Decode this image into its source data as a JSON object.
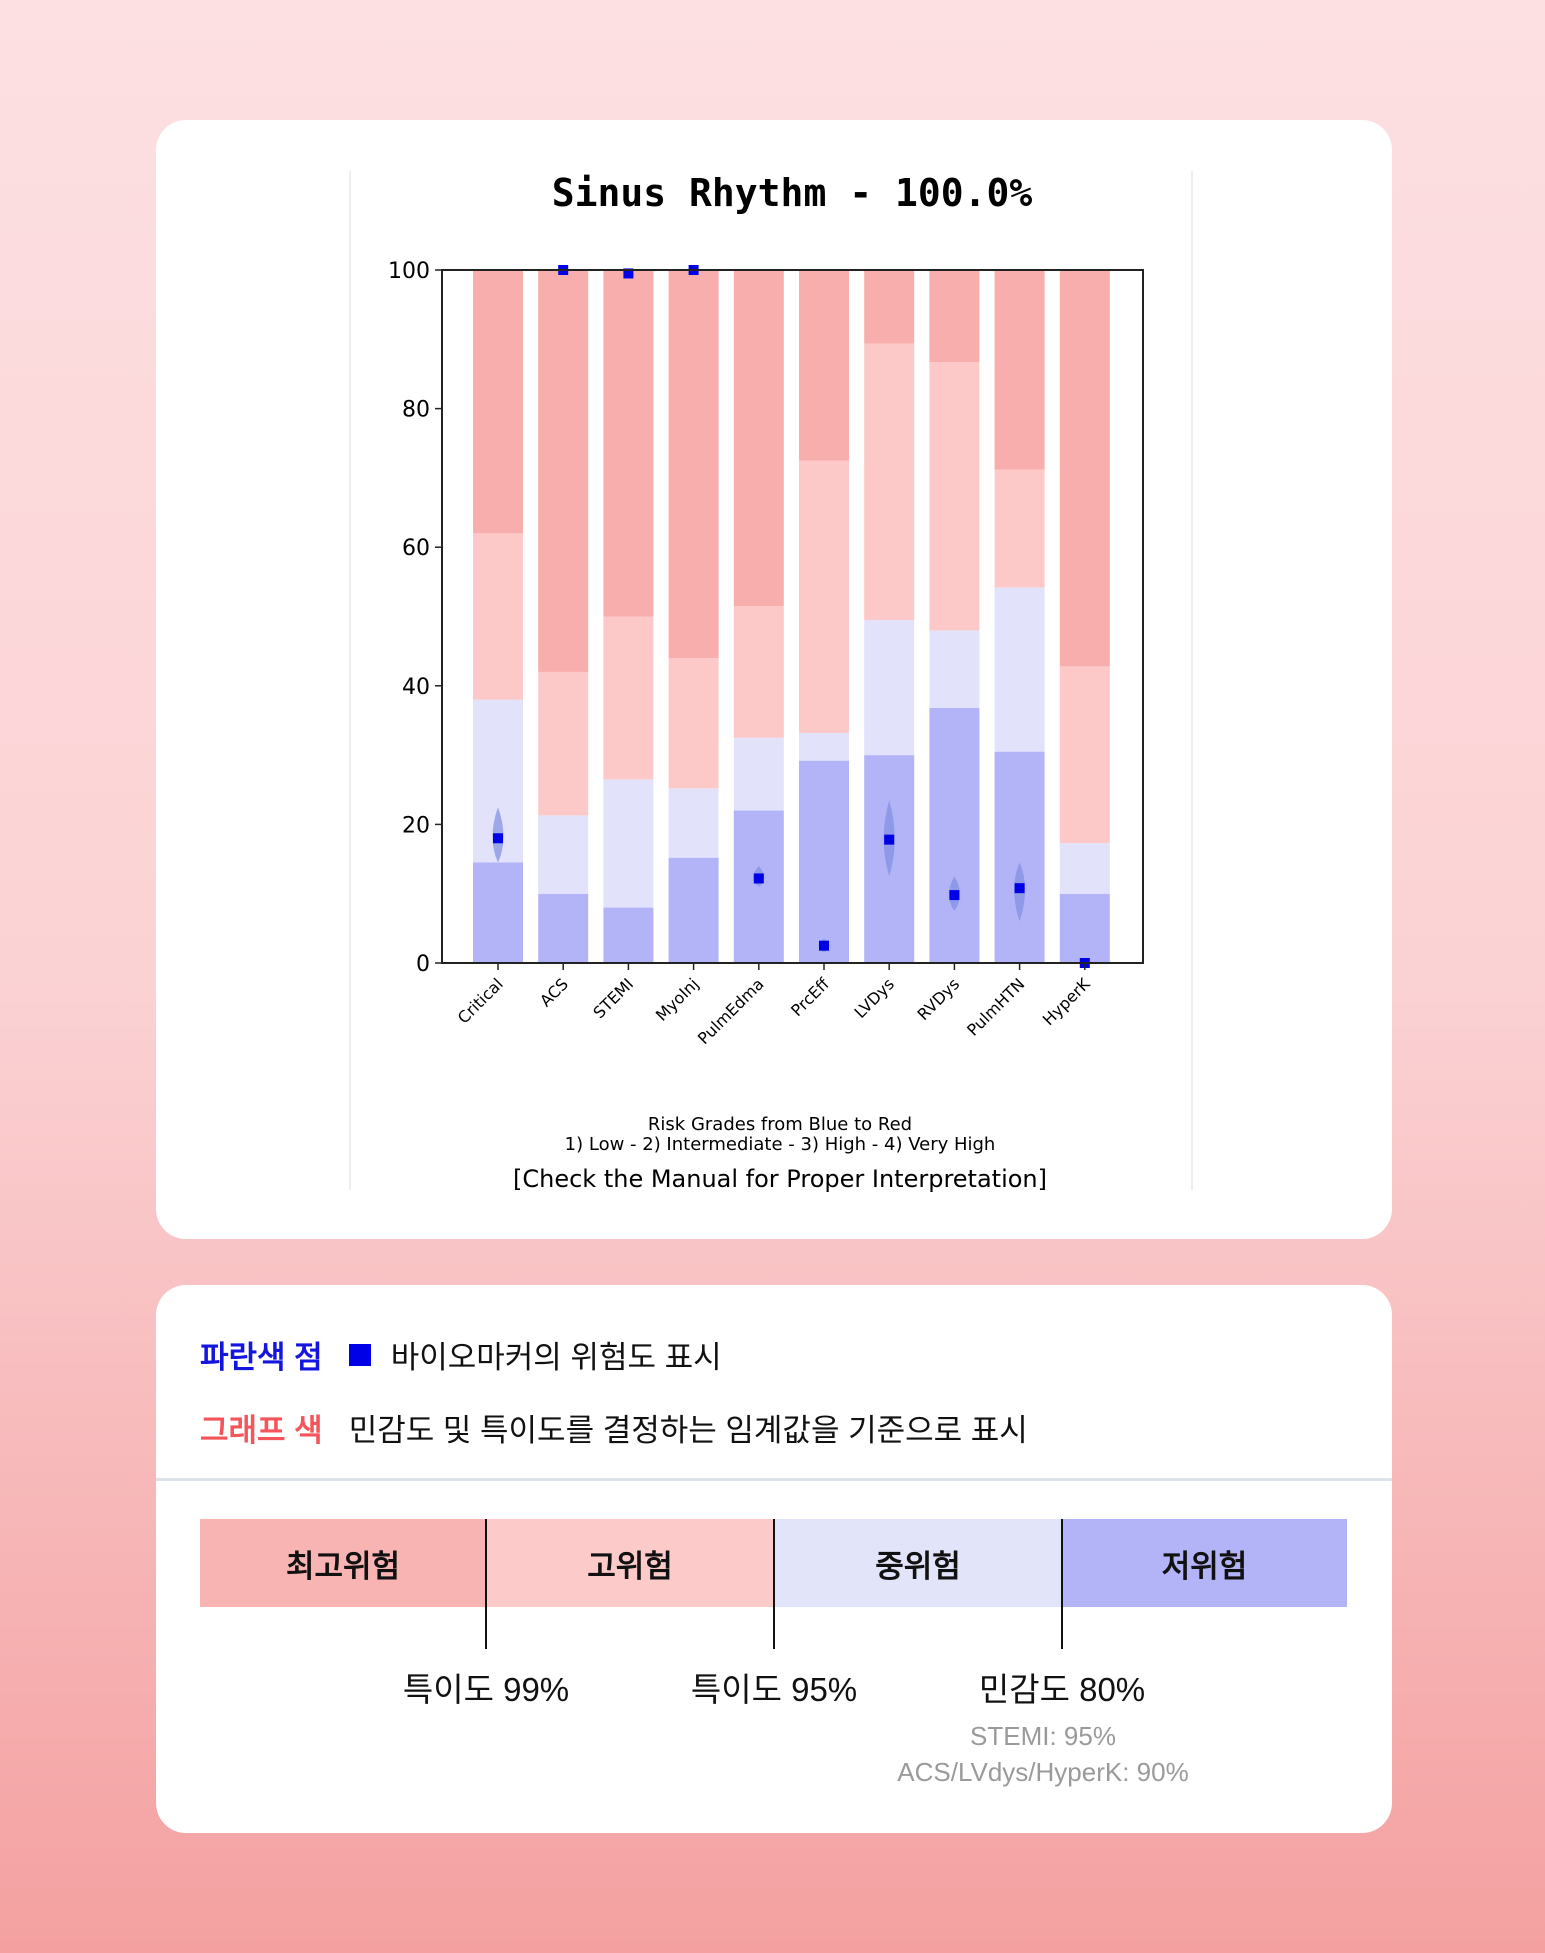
{
  "chart_data": {
    "type": "bar",
    "stacked": true,
    "title": "Sinus Rhythm - 100.0%",
    "categories": [
      "Critical",
      "ACS",
      "STEMI",
      "MyoInj",
      "PulmEdma",
      "PrcEff",
      "LVDys",
      "RVDys",
      "PulmHTN",
      "HyperK"
    ],
    "ylim": [
      0,
      100
    ],
    "yticks": [
      0,
      20,
      40,
      60,
      80,
      100
    ],
    "grid": false,
    "series": [
      {
        "name": "1) Low",
        "color": "#b3b3f8",
        "upper": [
          14.5,
          10,
          8,
          15.2,
          22,
          29.2,
          30,
          36.8,
          30.5,
          10
        ]
      },
      {
        "name": "2) Intermediate",
        "color": "#e2e3fa",
        "upper": [
          38,
          21.3,
          26.5,
          25.2,
          32.5,
          33.2,
          49.5,
          48,
          54.2,
          17.3
        ]
      },
      {
        "name": "3) High",
        "color": "#fcc8c8",
        "upper": [
          62,
          42,
          50,
          44,
          51.5,
          72.5,
          89.4,
          86.7,
          71.2,
          42.8
        ]
      },
      {
        "name": "4) Very High",
        "color": "#f9aeae",
        "upper": [
          100,
          100,
          100,
          100,
          100,
          100,
          100,
          100,
          100,
          100
        ]
      }
    ],
    "markers": {
      "color": "#0000e6",
      "values": [
        18,
        100,
        99.5,
        100,
        12.2,
        2.5,
        17.8,
        9.8,
        10.8,
        0
      ],
      "spread": [
        [
          14.5,
          22.5
        ],
        null,
        null,
        null,
        [
          11,
          14
        ],
        [
          1.5,
          3.5
        ],
        [
          12.5,
          23.5
        ],
        [
          7.5,
          12.5
        ],
        [
          6,
          14.5
        ],
        null
      ]
    },
    "caption_lines": [
      "Risk Grades from Blue to Red",
      "1) Low - 2) Intermediate - 3) High - 4) Very High"
    ],
    "note": "[Check the Manual for Proper Interpretation]"
  },
  "legend": {
    "dot_label": "파란색 점",
    "dot_text": "바이오마커의 위험도 표시",
    "color_label": "그래프 색",
    "color_text": "민감도 및 특이도를 결정하는 임계값을 기준으로 표시",
    "dot_label_color": "#1515e0",
    "color_label_color": "#f4555a"
  },
  "risk_scale": {
    "bands": [
      {
        "label": "최고위험",
        "color": "#f8b3b3"
      },
      {
        "label": "고위험",
        "color": "#fdcaca"
      },
      {
        "label": "중위험",
        "color": "#e2e4fa"
      },
      {
        "label": "저위험",
        "color": "#b3b3f8"
      }
    ],
    "thresholds": [
      "특이도 99%",
      "특이도 95%",
      "민감도 80%"
    ],
    "notes": [
      "STEMI: 95%",
      "ACS/LVdys/HyperK: 90%"
    ]
  }
}
